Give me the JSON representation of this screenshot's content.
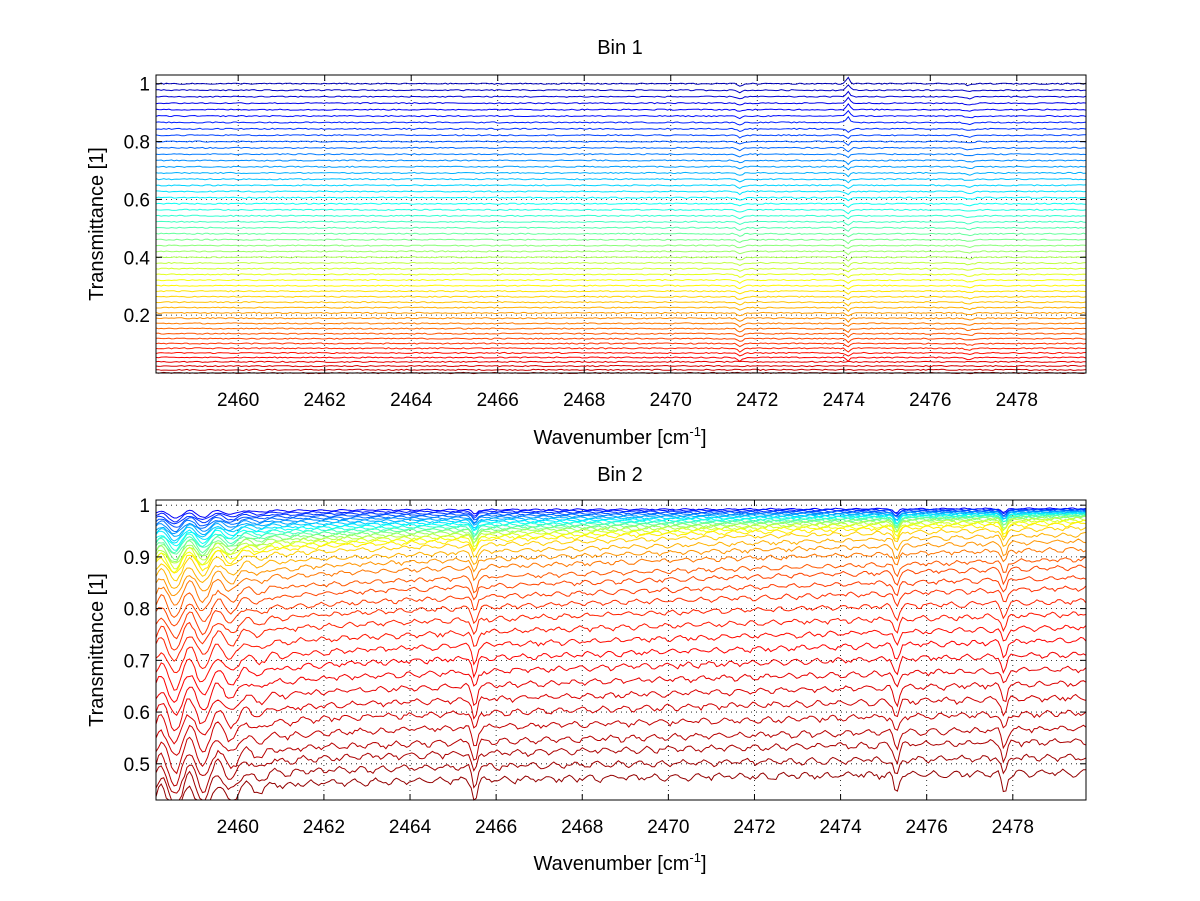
{
  "chart_data": [
    {
      "type": "line",
      "title": "Bin 1",
      "xlabel": "Wavenumber [cm",
      "xlabel_sup": "-1",
      "xlabel_tail": "]",
      "ylabel": "Transmittance [1]",
      "xlim": [
        2458.1,
        2479.6
      ],
      "ylim": [
        0.0,
        1.03
      ],
      "x_ticks": [
        2460,
        2462,
        2464,
        2466,
        2468,
        2470,
        2472,
        2474,
        2476,
        2478
      ],
      "y_ticks": [
        0.2,
        0.4,
        0.6,
        0.8,
        1.0
      ],
      "x_tick_labels": [
        "2460",
        "2462",
        "2464",
        "2466",
        "2468",
        "2470",
        "2472",
        "2474",
        "2476",
        "2478"
      ],
      "y_tick_labels": [
        "0.2",
        "0.4",
        "0.6",
        "0.8",
        "1"
      ],
      "grid": true,
      "legend": "none",
      "series_count": 52,
      "series_baselines": {
        "from": 0.0,
        "to": 1.0
      },
      "colormap": "jet (blue at top transmittance, dark red at bottom)",
      "features": [
        {
          "x": 2474.1,
          "description": "sharp spike/absorption line"
        },
        {
          "x": 2471.6,
          "description": "small absorption dip"
        },
        {
          "x": 2476.9,
          "description": "small absorption dip"
        }
      ]
    },
    {
      "type": "line",
      "title": "Bin 2",
      "xlabel": "Wavenumber [cm",
      "xlabel_sup": "-1",
      "xlabel_tail": "]",
      "ylabel": "Transmittance [1]",
      "xlim": [
        2458.1,
        2479.7
      ],
      "ylim": [
        0.43,
        1.01
      ],
      "x_ticks": [
        2460,
        2462,
        2464,
        2466,
        2468,
        2470,
        2472,
        2474,
        2476,
        2478
      ],
      "y_ticks": [
        0.5,
        0.6,
        0.7,
        0.8,
        0.9,
        1.0
      ],
      "x_tick_labels": [
        "2460",
        "2462",
        "2464",
        "2466",
        "2468",
        "2470",
        "2472",
        "2474",
        "2476",
        "2478"
      ],
      "y_tick_labels": [
        "0.5",
        "0.6",
        "0.7",
        "0.8",
        "0.9",
        "1"
      ],
      "grid": true,
      "legend": "none",
      "series_count": 40,
      "series_curves": [
        {
          "start": 0.99,
          "end": 0.995
        },
        {
          "start": 0.985,
          "end": 0.994
        },
        {
          "start": 0.98,
          "end": 0.993
        },
        {
          "start": 0.975,
          "end": 0.992
        },
        {
          "start": 0.97,
          "end": 0.991
        },
        {
          "start": 0.965,
          "end": 0.99
        },
        {
          "start": 0.96,
          "end": 0.989
        },
        {
          "start": 0.955,
          "end": 0.988
        },
        {
          "start": 0.95,
          "end": 0.987
        },
        {
          "start": 0.945,
          "end": 0.986
        },
        {
          "start": 0.94,
          "end": 0.985
        },
        {
          "start": 0.935,
          "end": 0.984
        },
        {
          "start": 0.93,
          "end": 0.983
        },
        {
          "start": 0.925,
          "end": 0.982
        },
        {
          "start": 0.92,
          "end": 0.98
        },
        {
          "start": 0.915,
          "end": 0.978
        },
        {
          "start": 0.91,
          "end": 0.975
        },
        {
          "start": 0.905,
          "end": 0.972
        },
        {
          "start": 0.9,
          "end": 0.968
        },
        {
          "start": 0.89,
          "end": 0.96
        },
        {
          "start": 0.875,
          "end": 0.948
        },
        {
          "start": 0.86,
          "end": 0.935
        },
        {
          "start": 0.845,
          "end": 0.92
        },
        {
          "start": 0.825,
          "end": 0.9
        },
        {
          "start": 0.805,
          "end": 0.885
        },
        {
          "start": 0.785,
          "end": 0.865
        },
        {
          "start": 0.765,
          "end": 0.845
        },
        {
          "start": 0.745,
          "end": 0.82
        },
        {
          "start": 0.72,
          "end": 0.795
        },
        {
          "start": 0.695,
          "end": 0.77
        },
        {
          "start": 0.67,
          "end": 0.745
        },
        {
          "start": 0.645,
          "end": 0.718
        },
        {
          "start": 0.62,
          "end": 0.69
        },
        {
          "start": 0.595,
          "end": 0.662
        },
        {
          "start": 0.57,
          "end": 0.635
        },
        {
          "start": 0.545,
          "end": 0.605
        },
        {
          "start": 0.52,
          "end": 0.575
        },
        {
          "start": 0.5,
          "end": 0.55
        },
        {
          "start": 0.48,
          "end": 0.52
        },
        {
          "start": 0.46,
          "end": 0.49
        }
      ],
      "colormap": "jet (blue near 1, orange near 0.93, dark red at bottom)",
      "features": [
        {
          "x_range": [
            2458.1,
            2461.5
          ],
          "description": "strong oscillating absorption band"
        },
        {
          "x": 2465.5,
          "description": "absorption dip"
        },
        {
          "x": 2475.3,
          "description": "absorption dip"
        },
        {
          "x": 2477.8,
          "description": "absorption dip"
        }
      ]
    }
  ]
}
